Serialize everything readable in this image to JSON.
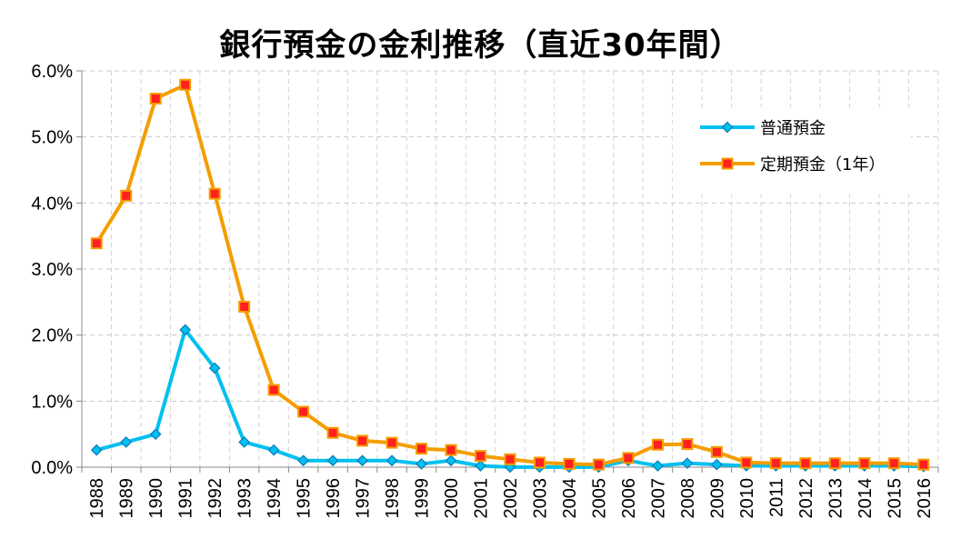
{
  "chart_data": {
    "type": "line",
    "title": "銀行預金の金利推移（直近30年間）",
    "xlabel": "",
    "ylabel": "",
    "ylim": [
      0,
      6
    ],
    "y_ticks": [
      "0.0%",
      "1.0%",
      "2.0%",
      "3.0%",
      "4.0%",
      "5.0%",
      "6.0%"
    ],
    "y_tick_values": [
      0,
      1,
      2,
      3,
      4,
      5,
      6
    ],
    "grid": true,
    "legend_position": "top-right",
    "categories": [
      "1988",
      "1989",
      "1990",
      "1991",
      "1992",
      "1993",
      "1994",
      "1995",
      "1996",
      "1997",
      "1998",
      "1999",
      "2000",
      "2001",
      "2002",
      "2003",
      "2004",
      "2005",
      "2006",
      "2007",
      "2008",
      "2009",
      "2010",
      "2011",
      "2012",
      "2013",
      "2014",
      "2015",
      "2016"
    ],
    "series": [
      {
        "name": "普通預金",
        "color": "#00c0f0",
        "marker": "diamond",
        "values": [
          0.26,
          0.38,
          0.5,
          2.08,
          1.5,
          0.38,
          0.26,
          0.1,
          0.1,
          0.1,
          0.1,
          0.05,
          0.1,
          0.02,
          0.001,
          0.001,
          0.001,
          0.001,
          0.1,
          0.02,
          0.06,
          0.04,
          0.02,
          0.02,
          0.02,
          0.02,
          0.02,
          0.02,
          0.01
        ]
      },
      {
        "name": "定期預金（1年）",
        "color": "#f59d00",
        "marker_fill": "#ff2020",
        "marker": "square",
        "values": [
          3.39,
          4.11,
          5.58,
          5.79,
          4.14,
          2.43,
          1.17,
          0.84,
          0.52,
          0.4,
          0.37,
          0.28,
          0.26,
          0.17,
          0.12,
          0.07,
          0.05,
          0.04,
          0.14,
          0.34,
          0.35,
          0.23,
          0.07,
          0.06,
          0.06,
          0.06,
          0.06,
          0.06,
          0.04
        ]
      }
    ]
  }
}
